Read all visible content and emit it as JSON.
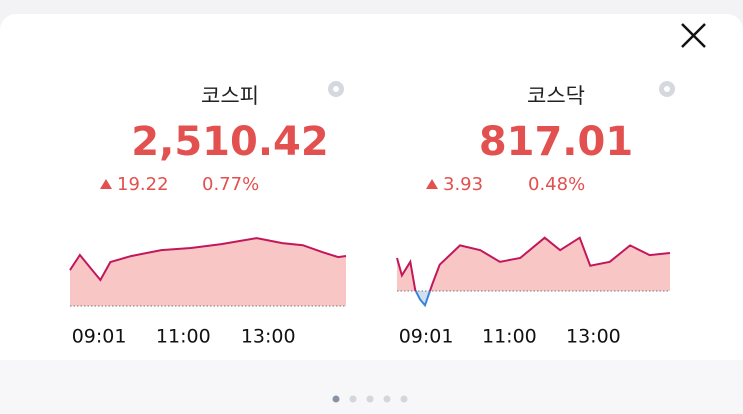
{
  "chart_data": [
    {
      "type": "line",
      "title": "코스피",
      "price": "2,510.42",
      "change": "19.22",
      "change_pct": "0.77%",
      "x": [
        "09:00",
        "09:14",
        "09:29",
        "09:43",
        "09:57",
        "10:26",
        "11:09",
        "11:51",
        "12:34",
        "13:24",
        "14:00",
        "14:29",
        "14:57",
        "15:19",
        "15:30"
      ],
      "values": [
        2505.0,
        2510.8,
        2505.8,
        2501.2,
        2508.1,
        2510.4,
        2512.7,
        2513.5,
        2515.0,
        2517.3,
        2515.4,
        2514.6,
        2511.9,
        2510.0,
        2510.42
      ],
      "xlim": [
        "09:00",
        "15:30"
      ],
      "xticks": [
        "09:01",
        "11:00",
        "13:00"
      ],
      "ylim": [
        2491.2,
        2521.2
      ],
      "baseline": 2491.2,
      "color": "#c2185b",
      "fill": "#f9c6c6",
      "down_color": "#3b82d6",
      "down_fill": "#cfe0f5"
    },
    {
      "type": "line",
      "title": "코스닥",
      "price": "817.01",
      "change": "3.93",
      "change_pct": "0.48%",
      "x": [
        "09:00",
        "09:07",
        "09:19",
        "09:26",
        "09:33",
        "09:40",
        "09:50",
        "10:01",
        "10:30",
        "10:59",
        "11:27",
        "11:56",
        "12:31",
        "12:53",
        "13:21",
        "13:36",
        "14:04",
        "14:33",
        "15:01",
        "15:30"
      ],
      "values": [
        816.5,
        814.7,
        816.1,
        813.2,
        812.2,
        811.6,
        813.7,
        815.8,
        817.8,
        817.3,
        816.1,
        816.5,
        818.6,
        817.3,
        818.6,
        815.7,
        816.1,
        817.8,
        816.8,
        817.01
      ],
      "xlim": [
        "09:00",
        "15:30"
      ],
      "xticks": [
        "09:01",
        "11:00",
        "13:00"
      ],
      "ylim": [
        811.53,
        819.6
      ],
      "baseline": 813.08,
      "color": "#c2185b",
      "fill": "#f9c6c6",
      "down_color": "#3b82d6",
      "down_fill": "#cfe0f5"
    }
  ]
}
